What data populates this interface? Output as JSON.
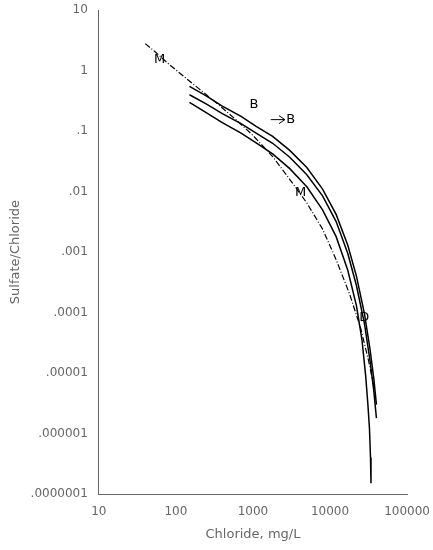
{
  "chart_data": {
    "type": "line",
    "title": "",
    "x_label": "Chloride, mg/L",
    "y_label": "Sulfate/Chloride",
    "log": true,
    "grid": false,
    "xlim": [
      10,
      100000
    ],
    "ylim": [
      1e-07,
      10
    ],
    "xticks": [
      10,
      100,
      1000,
      10000,
      100000
    ],
    "yticks": [
      {
        "value": 1e-07,
        "label": ".0000001"
      },
      {
        "value": 1e-06,
        "label": ".000001"
      },
      {
        "value": 1e-05,
        "label": ".00001"
      },
      {
        "value": 0.0001,
        "label": ".0001"
      },
      {
        "value": 0.001,
        "label": ".001"
      },
      {
        "value": 0.01,
        "label": ".01"
      },
      {
        "value": 0.1,
        "label": ".1"
      },
      1,
      10
    ],
    "series": [
      {
        "x": [
          40,
          55,
          80,
          120,
          200,
          350,
          600,
          1000,
          1800,
          3000,
          5000,
          8000,
          12000,
          18000,
          25000,
          32000,
          38000
        ],
        "values": [
          2.8,
          2.0,
          1.3,
          0.85,
          0.5,
          0.28,
          0.155,
          0.085,
          0.038,
          0.016,
          0.0065,
          0.0024,
          0.00075,
          0.0002,
          5.5e-05,
          1.5e-05,
          5e-06
        ],
        "color": "#000000",
        "line_style": "dashdot"
      },
      {
        "x": [
          150,
          250,
          400,
          700,
          1100,
          1800,
          3000,
          5000,
          8000,
          12000,
          17000,
          22000,
          28000,
          33000,
          37000,
          40000
        ],
        "values": [
          0.55,
          0.38,
          0.26,
          0.175,
          0.12,
          0.082,
          0.048,
          0.025,
          0.011,
          0.0042,
          0.0013,
          0.0004,
          9.5e-05,
          2.5e-05,
          8e-06,
          3e-06
        ],
        "color": "#000000",
        "line_style": "solid"
      },
      {
        "x": [
          150,
          250,
          400,
          700,
          1100,
          1800,
          3000,
          5000,
          8000,
          12000,
          17000,
          22000,
          28000,
          33000,
          37000,
          40000
        ],
        "values": [
          0.4,
          0.28,
          0.195,
          0.133,
          0.093,
          0.063,
          0.037,
          0.019,
          0.0085,
          0.0032,
          0.00095,
          0.00028,
          6.5e-05,
          1.6e-05,
          5e-06,
          1.8e-06
        ],
        "color": "#000000",
        "line_style": "solid"
      },
      {
        "x": [
          150,
          250,
          400,
          700,
          1100,
          1800,
          3000,
          5000,
          8000,
          12000,
          17000,
          22000,
          26000,
          29000,
          31000,
          32500,
          33500,
          34000
        ],
        "values": [
          0.3,
          0.2,
          0.138,
          0.093,
          0.064,
          0.042,
          0.024,
          0.012,
          0.005,
          0.0018,
          0.0005,
          0.00013,
          3.5e-05,
          9e-06,
          3e-06,
          1.2e-06,
          4e-07,
          1.5e-07
        ],
        "color": "#000000",
        "line_style": "solid"
      }
    ],
    "annotations": [
      {
        "text": "M",
        "x": 52,
        "y": 1.55
      },
      {
        "text": "B",
        "x": 900,
        "y": 0.275
      },
      {
        "text": "M",
        "x": 3500,
        "y": 0.0095
      },
      {
        "text": "D",
        "x": 24000,
        "y": 8.2e-05
      },
      {
        "text": "B",
        "x": 2700,
        "y": 0.155
      }
    ],
    "arrows": [
      {
        "x_start": 1700,
        "x_end": 2600,
        "y": 0.155
      }
    ]
  }
}
